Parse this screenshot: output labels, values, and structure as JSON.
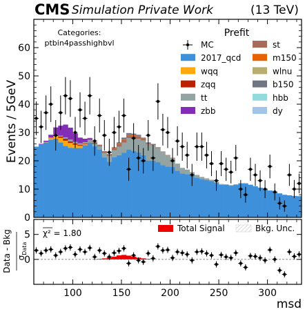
{
  "header": {
    "experiment": "CMS",
    "label": "Simulation Private Work",
    "energy": "(13 TeV)"
  },
  "annotation": {
    "line1": "Categories:",
    "line2": "ptbin4passhighbvl"
  },
  "colors": {
    "2017_qcd": "#3f90da",
    "wqq": "#ffa90e",
    "zqq": "#bd1f01",
    "tt": "#94a4a2",
    "zbb": "#832db6",
    "st": "#a96b59",
    "m150": "#e76300",
    "wlnu": "#b9ac70",
    "b150": "#717581",
    "hbb": "#92dadd",
    "dy": "#a1c4e8",
    "total_signal": "#ee0000"
  },
  "chart_data": [
    {
      "type": "bar",
      "stacked": true,
      "xlabel": "msd",
      "ylabel": "Events / 5GeV",
      "xlim": [
        60,
        335
      ],
      "ylim": [
        0,
        70
      ],
      "yticks": [
        0,
        10,
        20,
        30,
        40,
        50,
        60
      ],
      "bin_width": 5,
      "legend": {
        "title": "Prefit",
        "placement": "top-right",
        "col1": [
          "MC",
          "2017_qcd",
          "wqq",
          "zqq",
          "tt",
          "zbb"
        ],
        "col2": [
          "st",
          "m150",
          "wlnu",
          "b150",
          "hbb",
          "dy"
        ]
      },
      "x_bin_centers": [
        62.5,
        67.5,
        72.5,
        77.5,
        82.5,
        87.5,
        92.5,
        97.5,
        102.5,
        107.5,
        112.5,
        117.5,
        122.5,
        127.5,
        132.5,
        137.5,
        142.5,
        147.5,
        152.5,
        157.5,
        162.5,
        167.5,
        172.5,
        177.5,
        182.5,
        187.5,
        192.5,
        197.5,
        202.5,
        207.5,
        212.5,
        217.5,
        222.5,
        227.5,
        232.5,
        237.5,
        242.5,
        247.5,
        252.5,
        257.5,
        262.5,
        267.5,
        272.5,
        277.5,
        282.5,
        287.5,
        292.5,
        297.5,
        302.5,
        307.5,
        312.5,
        317.5,
        322.5,
        327.5,
        332.5
      ],
      "series": [
        {
          "name": "2017_qcd",
          "values": [
            25.0,
            25.8,
            26.5,
            27.5,
            27.8,
            26.5,
            25.3,
            24.6,
            24.5,
            24.5,
            25.5,
            26.5,
            25.2,
            24.0,
            21.2,
            19.7,
            21.3,
            22.0,
            22.8,
            24.0,
            23.5,
            23.0,
            22.0,
            20.0,
            20.0,
            19.5,
            18.5,
            18.0,
            17.8,
            16.5,
            15.5,
            15.3,
            14.8,
            14.0,
            13.5,
            13.2,
            12.8,
            12.2,
            11.5,
            11.5,
            11.2,
            11.5,
            12.0,
            12.0,
            11.5,
            11.0,
            10.5,
            10.0,
            9.5,
            9.0,
            8.5,
            8.0,
            7.8,
            7.6,
            7.5
          ]
        },
        {
          "name": "wqq",
          "values": [
            0,
            0,
            0.2,
            0.5,
            1.0,
            1.6,
            1.8,
            1.7,
            1.2,
            0.8,
            0.4,
            0.2,
            0.1,
            0,
            0,
            0,
            0,
            0,
            0,
            0,
            0,
            0,
            0,
            0,
            0,
            0,
            0,
            0,
            0,
            0,
            0,
            0,
            0,
            0,
            0,
            0,
            0,
            0,
            0,
            0,
            0,
            0,
            0,
            0,
            0,
            0,
            0,
            0,
            0,
            0,
            0,
            0,
            0,
            0,
            0
          ]
        },
        {
          "name": "zqq",
          "values": [
            0,
            0,
            0,
            0.1,
            0.3,
            0.5,
            0.7,
            0.6,
            0.4,
            0.3,
            0.2,
            0.1,
            0,
            0,
            0,
            0,
            0,
            0,
            0,
            0,
            0,
            0,
            0,
            0,
            0,
            0,
            0,
            0,
            0,
            0,
            0,
            0,
            0,
            0,
            0,
            0,
            0,
            0,
            0,
            0,
            0,
            0,
            0,
            0,
            0,
            0,
            0,
            0,
            0,
            0,
            0,
            0,
            0,
            0,
            0
          ]
        },
        {
          "name": "tt",
          "values": [
            0,
            0,
            0,
            0.1,
            0.2,
            0.3,
            0.5,
            0.6,
            0.6,
            0.6,
            0.5,
            0.6,
            0.8,
            1.2,
            1.6,
            2.0,
            2.4,
            3.0,
            3.6,
            4.0,
            4.4,
            4.8,
            5.2,
            5.8,
            5.5,
            5.0,
            4.6,
            4.0,
            3.2,
            2.5,
            2.0,
            1.6,
            1.2,
            1.0,
            0.8,
            0.6,
            0.5,
            0.4,
            0.3,
            0.2,
            0.2,
            0.2,
            0.1,
            0.1,
            0.1,
            0,
            0,
            0,
            0,
            0,
            0,
            0,
            0,
            0,
            0
          ]
        },
        {
          "name": "zbb",
          "values": [
            0,
            0.2,
            0.4,
            1.0,
            2.5,
            3.5,
            4.5,
            4.2,
            3.0,
            2.0,
            1.2,
            0.6,
            0.3,
            0.2,
            0.1,
            0,
            0,
            0,
            0,
            0,
            0,
            0,
            0,
            0,
            0,
            0,
            0,
            0,
            0,
            0,
            0,
            0,
            0,
            0,
            0,
            0,
            0,
            0,
            0,
            0,
            0,
            0,
            0,
            0,
            0,
            0,
            0,
            0,
            0,
            0,
            0,
            0,
            0,
            0,
            0
          ]
        },
        {
          "name": "st",
          "values": [
            0,
            0,
            0,
            0,
            0,
            0,
            0,
            0,
            0,
            0,
            0,
            0.1,
            0.2,
            0.3,
            0.5,
            0.6,
            0.8,
            1.0,
            1.1,
            1.0,
            0.9,
            0.8,
            0.6,
            0.5,
            0.4,
            0.3,
            0.2,
            0.1,
            0.1,
            0,
            0,
            0,
            0,
            0,
            0,
            0,
            0,
            0,
            0,
            0,
            0,
            0,
            0,
            0,
            0,
            0,
            0,
            0,
            0,
            0,
            0,
            0,
            0,
            0,
            0
          ]
        },
        {
          "name": "m150",
          "values": [
            0,
            0,
            0,
            0,
            0,
            0,
            0,
            0,
            0,
            0,
            0,
            0,
            0,
            0,
            0,
            0,
            0.1,
            0.2,
            0.3,
            0.3,
            0.3,
            0.2,
            0.1,
            0,
            0,
            0,
            0,
            0,
            0,
            0,
            0,
            0,
            0,
            0,
            0,
            0,
            0,
            0,
            0,
            0,
            0,
            0,
            0,
            0,
            0,
            0,
            0,
            0,
            0,
            0,
            0,
            0,
            0,
            0,
            0
          ]
        },
        {
          "name": "wlnu",
          "values": [
            0,
            0,
            0,
            0,
            0,
            0,
            0,
            0,
            0,
            0,
            0,
            0,
            0,
            0,
            0,
            0,
            0,
            0,
            0,
            0,
            0,
            0,
            0,
            0,
            0,
            0,
            0,
            0,
            0,
            0,
            0,
            0,
            0,
            0,
            0,
            0,
            0,
            0,
            0,
            0,
            0,
            0,
            0,
            0,
            0,
            0,
            0,
            0,
            0,
            0,
            0,
            0,
            0,
            0,
            0
          ]
        },
        {
          "name": "b150",
          "values": [
            0,
            0,
            0,
            0,
            0,
            0,
            0,
            0,
            0,
            0,
            0,
            0,
            0,
            0,
            0,
            0.1,
            0.2,
            0.3,
            0.4,
            0.5,
            0.5,
            0.4,
            0.3,
            0.2,
            0.1,
            0,
            0,
            0,
            0,
            0,
            0,
            0,
            0,
            0,
            0,
            0,
            0,
            0,
            0,
            0,
            0,
            0,
            0,
            0,
            0,
            0,
            0,
            0,
            0,
            0,
            0,
            0,
            0,
            0,
            0
          ]
        },
        {
          "name": "hbb",
          "values": [
            0,
            0,
            0,
            0,
            0,
            0,
            0,
            0,
            0,
            0,
            0,
            0,
            0,
            0,
            0,
            0,
            0,
            0,
            0,
            0,
            0,
            0,
            0,
            0,
            0,
            0,
            0,
            0,
            0,
            0,
            0,
            0,
            0,
            0,
            0,
            0,
            0,
            0,
            0,
            0,
            0,
            0,
            0,
            0,
            0,
            0,
            0,
            0,
            0,
            0,
            0,
            0,
            0,
            0,
            0
          ]
        },
        {
          "name": "dy",
          "values": [
            0,
            0,
            0,
            0,
            0,
            0,
            0,
            0,
            0,
            0,
            0,
            0,
            0,
            0,
            0,
            0,
            0,
            0,
            0,
            0,
            0,
            0,
            0,
            0,
            0,
            0,
            0,
            0,
            0,
            0,
            0,
            0,
            0,
            0,
            0,
            0,
            0,
            0,
            0,
            0,
            0,
            0,
            0,
            0,
            0,
            0,
            0,
            0,
            0,
            0,
            0,
            0,
            0,
            0,
            0
          ]
        }
      ],
      "data_points": {
        "name": "MC",
        "x": [
          62.5,
          67.5,
          72.5,
          77.5,
          82.5,
          87.5,
          92.5,
          97.5,
          102.5,
          107.5,
          112.5,
          117.5,
          122.5,
          127.5,
          132.5,
          137.5,
          142.5,
          147.5,
          152.5,
          157.5,
          162.5,
          167.5,
          172.5,
          177.5,
          182.5,
          187.5,
          192.5,
          197.5,
          202.5,
          207.5,
          212.5,
          217.5,
          222.5,
          227.5,
          232.5,
          237.5,
          242.5,
          247.5,
          252.5,
          257.5,
          262.5,
          267.5,
          272.5,
          277.5,
          282.5,
          287.5,
          292.5,
          297.5,
          302.5,
          307.5,
          312.5,
          317.5,
          322.5,
          327.5,
          332.5
        ],
        "y": [
          35,
          32,
          37,
          40,
          29,
          37,
          43,
          42,
          30,
          38,
          35,
          43,
          27,
          36,
          29,
          23,
          30,
          32,
          36,
          17,
          28,
          21,
          20,
          29,
          21,
          41,
          31,
          30,
          20,
          27,
          25,
          22,
          15,
          25,
          25,
          22,
          19,
          13,
          19,
          17,
          16,
          21,
          10,
          8,
          17,
          15,
          13,
          10,
          18,
          9,
          5,
          4,
          15,
          10,
          12
        ],
        "yerr": [
          6,
          5.7,
          6.1,
          6.3,
          5.4,
          6.1,
          6.6,
          6.5,
          5.5,
          6.2,
          5.9,
          6.6,
          5.2,
          6.0,
          5.4,
          4.8,
          5.5,
          5.7,
          6.0,
          4.1,
          5.3,
          4.6,
          4.5,
          5.4,
          4.6,
          6.4,
          5.6,
          5.5,
          4.5,
          5.2,
          5.0,
          4.7,
          3.9,
          5.0,
          5.0,
          4.7,
          4.4,
          3.6,
          4.4,
          4.1,
          4.0,
          4.6,
          3.2,
          2.8,
          4.1,
          3.9,
          3.6,
          3.2,
          4.2,
          3.0,
          2.2,
          2.0,
          3.9,
          3.2,
          3.5
        ]
      }
    },
    {
      "type": "scatter",
      "ylabel_main": "Data - Bkg",
      "ylabel_sub": "σ",
      "ylabel_sub_index": "Data",
      "xlabel": "msd",
      "xlim": [
        60,
        335
      ],
      "ylim": [
        -5,
        8
      ],
      "yticks": [
        0,
        5
      ],
      "xticks": [
        100,
        150,
        200,
        250,
        300
      ],
      "chi2_label": "χ² = 1.80",
      "legend": [
        "Total Signal",
        "Bkg. Unc."
      ],
      "signal": {
        "x": [
          122.5,
          127.5,
          132.5,
          137.5,
          142.5,
          147.5,
          152.5,
          157.5,
          162.5,
          167.5,
          172.5,
          177.5
        ],
        "values": [
          0.05,
          0.1,
          0.2,
          0.35,
          0.55,
          0.8,
          0.9,
          0.75,
          0.55,
          0.35,
          0.2,
          0.1
        ]
      },
      "x": [
        62.5,
        67.5,
        72.5,
        77.5,
        82.5,
        87.5,
        92.5,
        97.5,
        102.5,
        107.5,
        112.5,
        117.5,
        122.5,
        127.5,
        132.5,
        137.5,
        142.5,
        147.5,
        152.5,
        157.5,
        162.5,
        167.5,
        172.5,
        177.5,
        182.5,
        187.5,
        192.5,
        197.5,
        202.5,
        207.5,
        212.5,
        217.5,
        222.5,
        227.5,
        232.5,
        237.5,
        242.5,
        247.5,
        252.5,
        257.5,
        262.5,
        267.5,
        272.5,
        277.5,
        282.5,
        287.5,
        292.5,
        297.5,
        302.5,
        307.5,
        312.5,
        317.5,
        322.5,
        327.5,
        332.5
      ],
      "y": [
        1.8,
        1.2,
        1.8,
        2.0,
        0.8,
        1.5,
        2.2,
        2.4,
        1.0,
        2.0,
        1.5,
        2.3,
        0.5,
        1.8,
        1.2,
        0.5,
        1.3,
        1.7,
        2.2,
        -0.8,
        0.8,
        -0.2,
        -0.5,
        1.2,
        0.2,
        2.6,
        1.8,
        1.9,
        0.3,
        1.5,
        1.3,
        1.0,
        -0.2,
        1.5,
        1.6,
        1.2,
        0.8,
        -1.0,
        0.9,
        0.5,
        0.3,
        1.3,
        -0.8,
        -1.6,
        0.7,
        0.6,
        0.3,
        -0.2,
        1.9,
        0.0,
        -2.2,
        -3.0,
        1.5,
        0.6,
        1.0
      ]
    }
  ]
}
